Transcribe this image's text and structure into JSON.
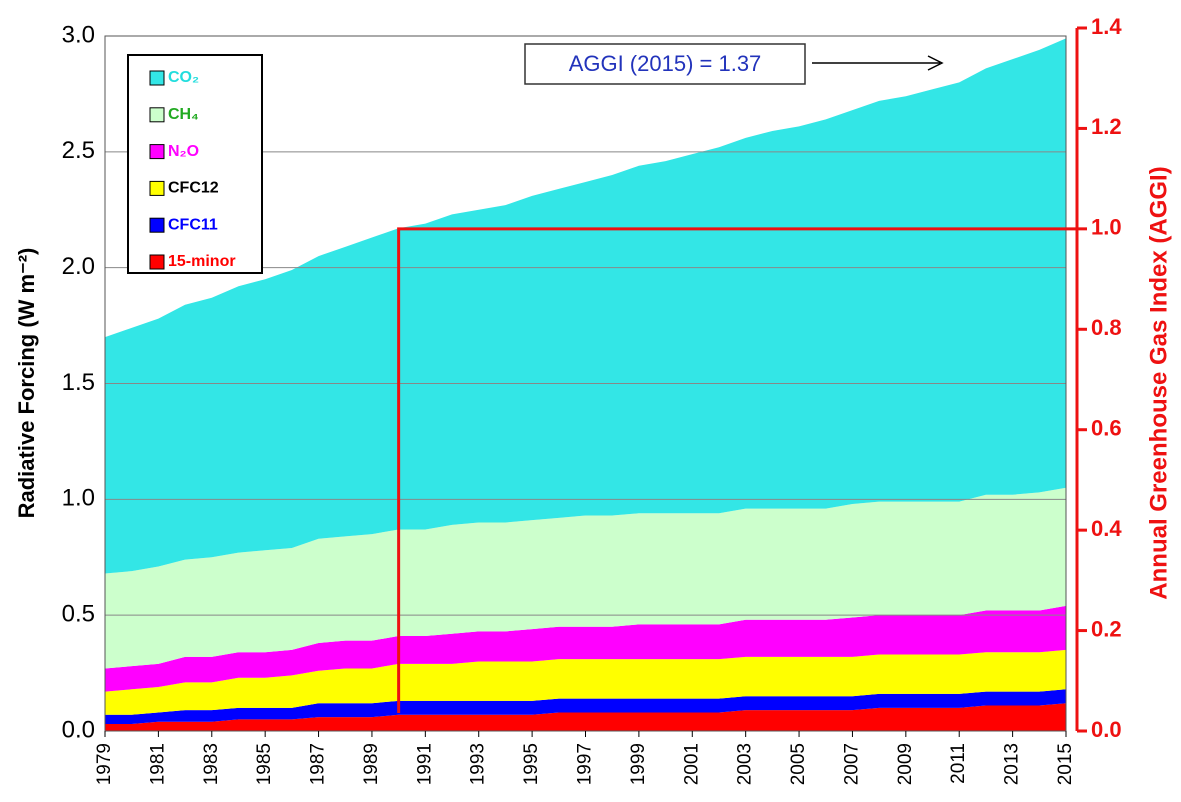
{
  "chart_data": {
    "type": "stacked-area",
    "y_label": "Radiative Forcing (W m⁻²)",
    "y2_label": "Annual Greenhouse Gas Index (AGGI)",
    "annotation": "AGGI (2015) = 1.37",
    "aggi_baseline": {
      "year": 1990,
      "value": 1.0
    },
    "x": [
      1979,
      1980,
      1981,
      1982,
      1983,
      1984,
      1985,
      1986,
      1987,
      1988,
      1989,
      1990,
      1991,
      1992,
      1993,
      1994,
      1995,
      1996,
      1997,
      1998,
      1999,
      2000,
      2001,
      2002,
      2003,
      2004,
      2005,
      2006,
      2007,
      2008,
      2009,
      2010,
      2011,
      2012,
      2013,
      2014,
      2015
    ],
    "xlim": [
      1979,
      2015
    ],
    "xticks": [
      1979,
      1981,
      1983,
      1985,
      1987,
      1989,
      1991,
      1993,
      1995,
      1997,
      1999,
      2001,
      2003,
      2005,
      2007,
      2009,
      2011,
      2013,
      2015
    ],
    "ylim": [
      0,
      3
    ],
    "yticks": [
      {
        "value": 0,
        "label": "0.0"
      },
      0.5,
      {
        "value": 1,
        "label": "1.0"
      },
      1.5,
      {
        "value": 2,
        "label": "2.0"
      },
      2.5,
      {
        "value": 3,
        "label": "3.0"
      }
    ],
    "y2lim": [
      0,
      1.4
    ],
    "y2ticks": [
      {
        "value": 0,
        "label": "0.0"
      },
      0.2,
      0.4,
      0.6,
      0.8,
      {
        "value": 1,
        "label": "1.0"
      },
      1.2,
      {
        "value": 1.4,
        "label": "1.4"
      }
    ],
    "grid": true,
    "legend": "upper-left",
    "series": [
      {
        "name": "CO₂",
        "color": "#33e6e6",
        "label_color": "#22dddd",
        "values": [
          1.02,
          1.05,
          1.07,
          1.1,
          1.12,
          1.15,
          1.17,
          1.2,
          1.22,
          1.25,
          1.28,
          1.3,
          1.32,
          1.34,
          1.35,
          1.37,
          1.4,
          1.42,
          1.44,
          1.47,
          1.5,
          1.52,
          1.55,
          1.58,
          1.6,
          1.63,
          1.65,
          1.68,
          1.7,
          1.73,
          1.75,
          1.78,
          1.81,
          1.84,
          1.88,
          1.91,
          1.94
        ]
      },
      {
        "name": "CH₄",
        "color": "#ccffcc",
        "label_color": "#22aa22",
        "values": [
          0.41,
          0.41,
          0.42,
          0.42,
          0.43,
          0.43,
          0.44,
          0.44,
          0.45,
          0.45,
          0.46,
          0.46,
          0.46,
          0.47,
          0.47,
          0.47,
          0.47,
          0.47,
          0.48,
          0.48,
          0.48,
          0.48,
          0.48,
          0.48,
          0.48,
          0.48,
          0.48,
          0.48,
          0.49,
          0.49,
          0.49,
          0.49,
          0.49,
          0.5,
          0.5,
          0.51,
          0.51
        ]
      },
      {
        "name": "N₂O",
        "color": "#ff00ff",
        "label_color": "#ff00ff",
        "values": [
          0.1,
          0.1,
          0.1,
          0.11,
          0.11,
          0.11,
          0.11,
          0.11,
          0.12,
          0.12,
          0.12,
          0.12,
          0.12,
          0.13,
          0.13,
          0.13,
          0.14,
          0.14,
          0.14,
          0.14,
          0.15,
          0.15,
          0.15,
          0.15,
          0.16,
          0.16,
          0.16,
          0.16,
          0.17,
          0.17,
          0.17,
          0.17,
          0.17,
          0.18,
          0.18,
          0.18,
          0.19
        ]
      },
      {
        "name": "CFC12",
        "color": "#ffff00",
        "label_color": "#000000",
        "values": [
          0.1,
          0.11,
          0.11,
          0.12,
          0.12,
          0.13,
          0.13,
          0.14,
          0.14,
          0.15,
          0.15,
          0.16,
          0.16,
          0.16,
          0.17,
          0.17,
          0.17,
          0.17,
          0.17,
          0.17,
          0.17,
          0.17,
          0.17,
          0.17,
          0.17,
          0.17,
          0.17,
          0.17,
          0.17,
          0.17,
          0.17,
          0.17,
          0.17,
          0.17,
          0.17,
          0.17,
          0.17
        ]
      },
      {
        "name": "CFC11",
        "color": "#0000ff",
        "label_color": "#0000ff",
        "values": [
          0.04,
          0.04,
          0.04,
          0.05,
          0.05,
          0.05,
          0.05,
          0.05,
          0.06,
          0.06,
          0.06,
          0.06,
          0.06,
          0.06,
          0.06,
          0.06,
          0.06,
          0.06,
          0.06,
          0.06,
          0.06,
          0.06,
          0.06,
          0.06,
          0.06,
          0.06,
          0.06,
          0.06,
          0.06,
          0.06,
          0.06,
          0.06,
          0.06,
          0.06,
          0.06,
          0.06,
          0.06
        ]
      },
      {
        "name": "15-minor",
        "color": "#ff0000",
        "label_color": "#ff0000",
        "values": [
          0.03,
          0.03,
          0.04,
          0.04,
          0.04,
          0.05,
          0.05,
          0.05,
          0.06,
          0.06,
          0.06,
          0.07,
          0.07,
          0.07,
          0.07,
          0.07,
          0.07,
          0.08,
          0.08,
          0.08,
          0.08,
          0.08,
          0.08,
          0.08,
          0.09,
          0.09,
          0.09,
          0.09,
          0.09,
          0.1,
          0.1,
          0.1,
          0.1,
          0.11,
          0.11,
          0.11,
          0.12
        ]
      }
    ]
  }
}
